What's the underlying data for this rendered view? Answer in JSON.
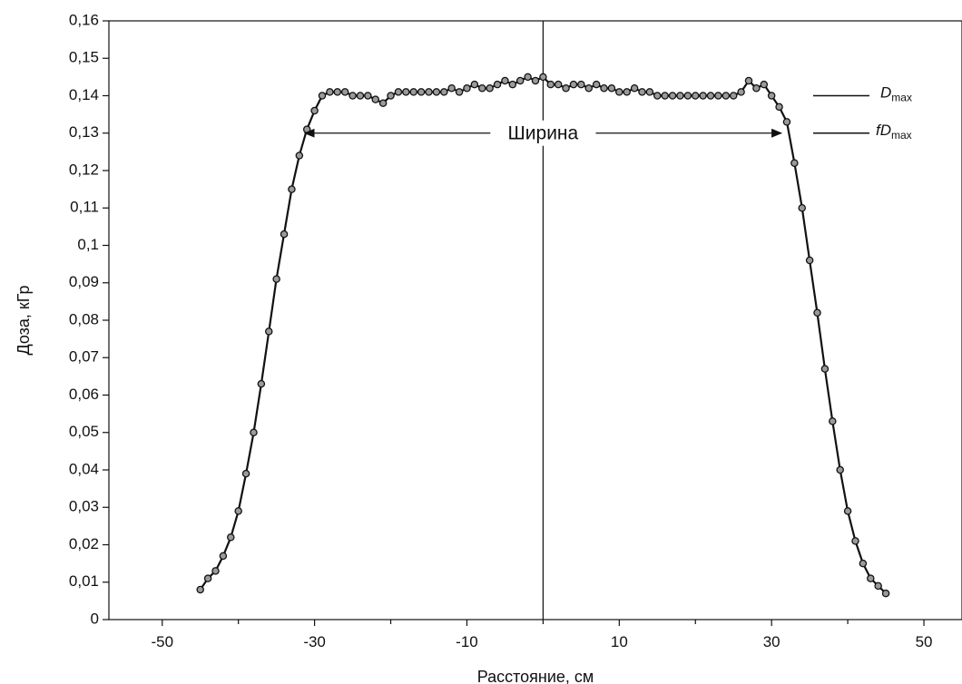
{
  "chart_data": {
    "type": "scatter",
    "xlabel": "Расстояние, см",
    "ylabel": "Доза, кГр",
    "xlim": [
      -57,
      55
    ],
    "ylim": [
      0,
      0.16
    ],
    "xticks": [
      -50,
      -30,
      -10,
      10,
      30,
      50
    ],
    "xtick_labels": [
      "-50",
      "-30",
      "-10",
      "10",
      "30",
      "50"
    ],
    "yticks": [
      0,
      0.01,
      0.02,
      0.03,
      0.04,
      0.05,
      0.06,
      0.07,
      0.08,
      0.09,
      0.1,
      0.11,
      0.12,
      0.13,
      0.14,
      0.15,
      0.16
    ],
    "ytick_labels": [
      "0",
      "0,01",
      "0,02",
      "0,03",
      "0,04",
      "0,05",
      "0,06",
      "0,07",
      "0,08",
      "0,09",
      "0,1",
      "0,11",
      "0,12",
      "0,13",
      "0,14",
      "0,15",
      "0,16"
    ],
    "grid": false,
    "center_line_x": 0,
    "series": [
      {
        "x": [
          -45,
          -44,
          -43,
          -42,
          -41,
          -40,
          -39,
          -38,
          -37,
          -36,
          -35,
          -34,
          -33,
          -32,
          -31,
          -30,
          -29,
          -28,
          -27,
          -26,
          -25,
          -24,
          -23,
          -22,
          -21,
          -20,
          -19,
          -18,
          -17,
          -16,
          -15,
          -14,
          -13,
          -12,
          -11,
          -10,
          -9,
          -8,
          -7,
          -6,
          -5,
          -4,
          -3,
          -2,
          -1,
          0,
          1,
          2,
          3,
          4,
          5,
          6,
          7,
          8,
          9,
          10,
          11,
          12,
          13,
          14,
          15,
          16,
          17,
          18,
          19,
          20,
          21,
          22,
          23,
          24,
          25,
          26,
          27,
          28,
          29,
          30,
          31,
          32,
          33,
          34,
          35,
          36,
          37,
          38,
          39,
          40,
          41,
          42,
          43,
          44,
          45
        ],
        "y": [
          0.008,
          0.011,
          0.013,
          0.017,
          0.022,
          0.029,
          0.039,
          0.05,
          0.063,
          0.077,
          0.091,
          0.103,
          0.115,
          0.124,
          0.131,
          0.136,
          0.14,
          0.141,
          0.141,
          0.141,
          0.14,
          0.14,
          0.14,
          0.139,
          0.138,
          0.14,
          0.141,
          0.141,
          0.141,
          0.141,
          0.141,
          0.141,
          0.141,
          0.142,
          0.141,
          0.142,
          0.143,
          0.142,
          0.142,
          0.143,
          0.144,
          0.143,
          0.144,
          0.145,
          0.144,
          0.145,
          0.143,
          0.143,
          0.142,
          0.143,
          0.143,
          0.142,
          0.143,
          0.142,
          0.142,
          0.141,
          0.141,
          0.142,
          0.141,
          0.141,
          0.14,
          0.14,
          0.14,
          0.14,
          0.14,
          0.14,
          0.14,
          0.14,
          0.14,
          0.14,
          0.14,
          0.141,
          0.144,
          0.142,
          0.143,
          0.14,
          0.137,
          0.133,
          0.122,
          0.11,
          0.096,
          0.082,
          0.067,
          0.053,
          0.04,
          0.029,
          0.021,
          0.015,
          0.011,
          0.009,
          0.007
        ]
      }
    ],
    "annotations": {
      "width_label": "Ширина",
      "width_y": 0.13,
      "width_x_from": -31.3,
      "width_x_to": 31.3,
      "legend_line_1_y": 0.14,
      "legend_line_2_y": 0.13,
      "legend_1": {
        "main": "D",
        "sub": "max"
      },
      "legend_2": {
        "main": "fD",
        "sub": "max"
      }
    }
  }
}
